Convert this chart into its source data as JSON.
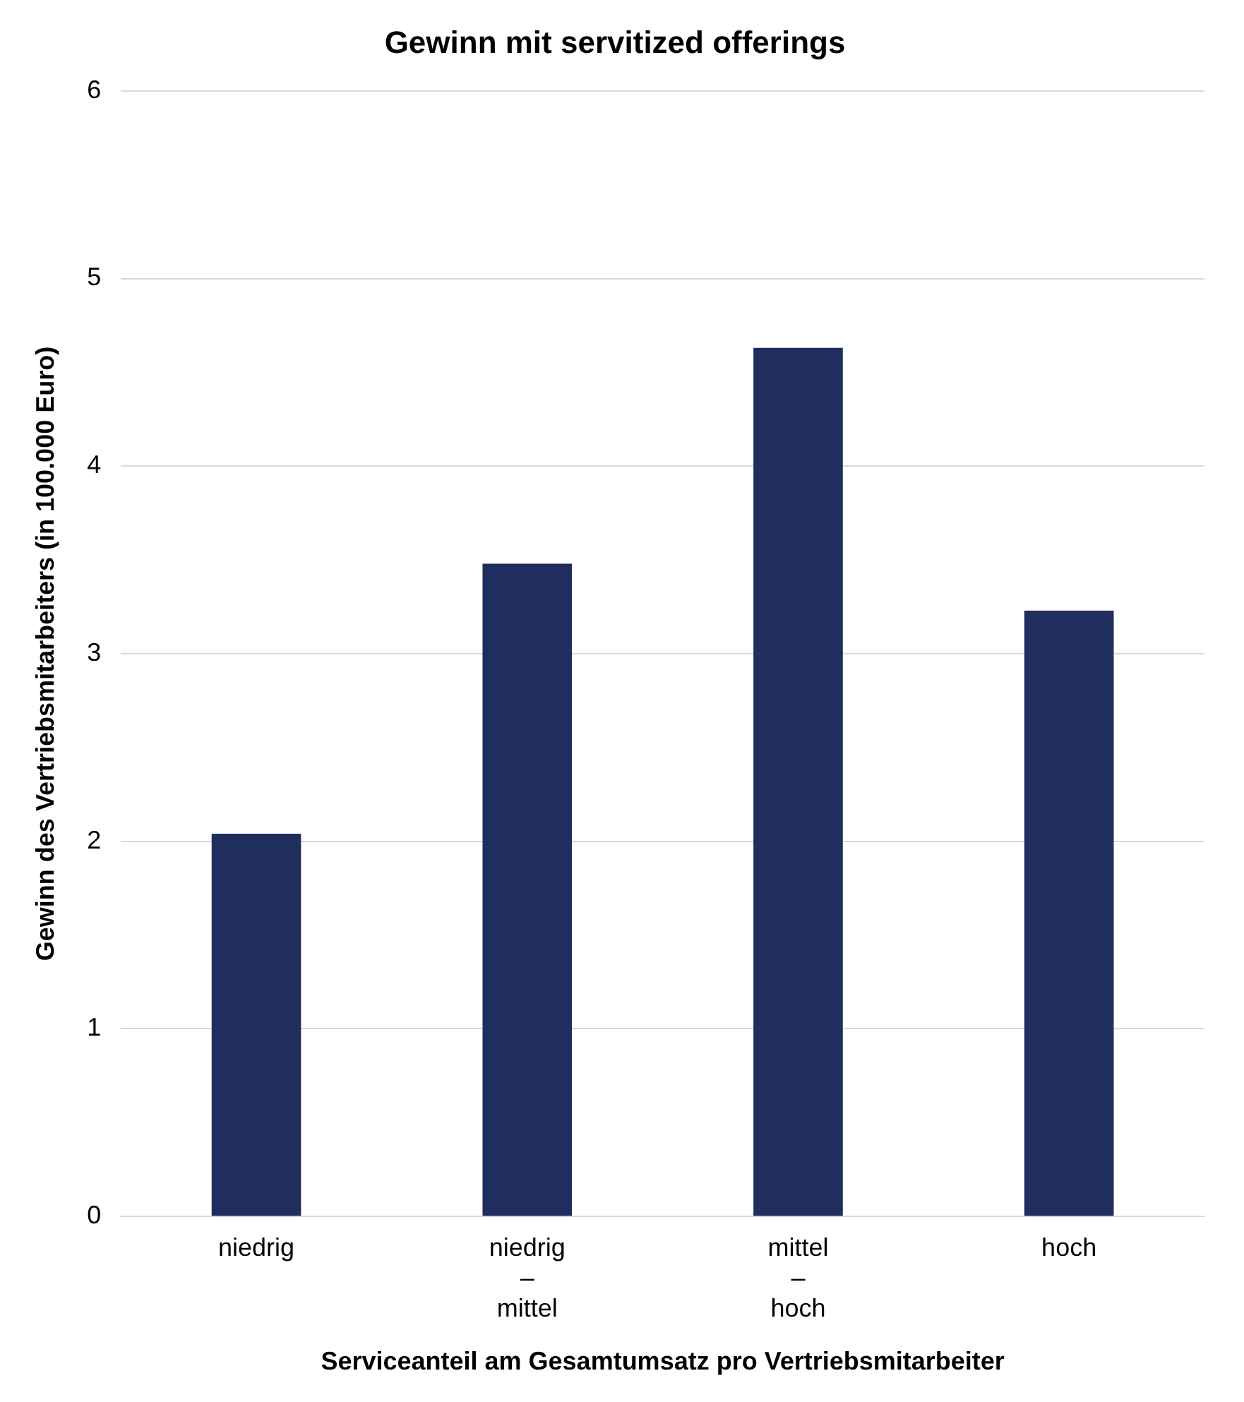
{
  "chart_data": {
    "type": "bar",
    "title": "Gewinn mit servitized offerings",
    "xlabel": "Serviceanteil am Gesamtumsatz pro Vertriebsmitarbeiter",
    "ylabel": "Gewinn des Vertriebsmitarbeiters (in 100.000 Euro)",
    "categories": [
      "niedrig",
      "niedrig – mittel",
      "mittel – hoch",
      "hoch"
    ],
    "values": [
      2.04,
      3.48,
      4.63,
      3.23
    ],
    "color": "#1f2d5f",
    "ylim": [
      0,
      6
    ],
    "yticks": [
      0,
      1,
      2,
      3,
      4,
      5,
      6
    ],
    "grid": "y",
    "legend": false
  }
}
